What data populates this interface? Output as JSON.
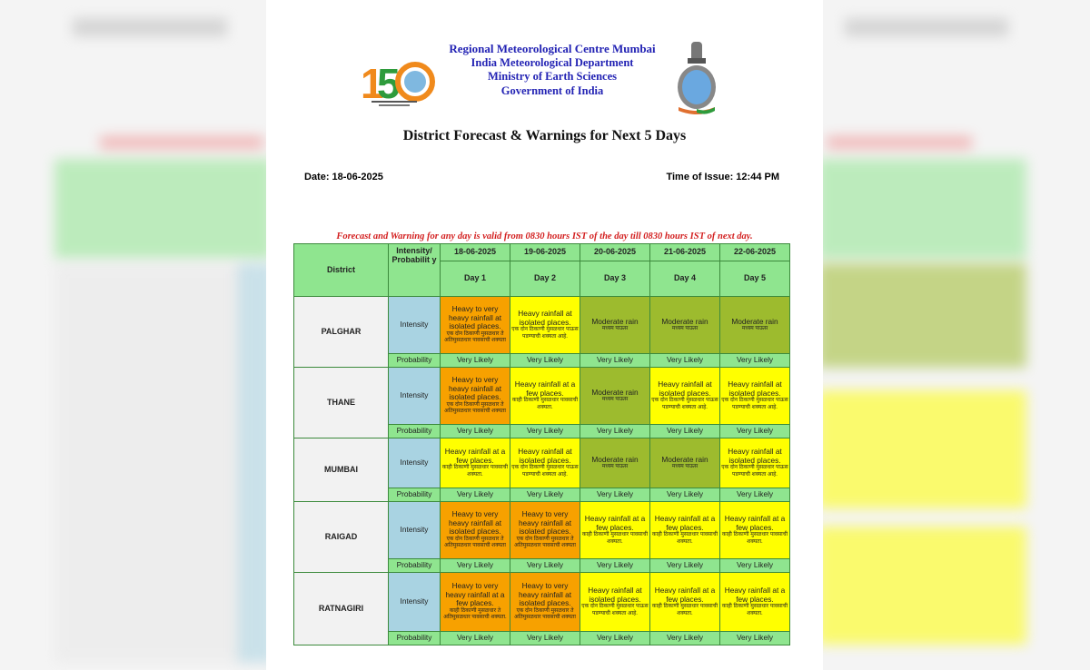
{
  "header": {
    "org_lines": [
      "Regional Meteorological Centre Mumbai",
      "India Meteorological Department",
      "Ministry of Earth Sciences",
      "Government of India"
    ],
    "title": "District Forecast & Warnings for Next 5 Days",
    "date": "Date: 18-06-2025",
    "time": "Time of Issue: 12:44 PM",
    "note": "Forecast and Warning for any day is valid from 0830 hours IST of the day till 0830 hours IST of next day."
  },
  "colors": {
    "orange": "#f7a100",
    "yellow": "#ffff00",
    "olive": "#9dbb2e",
    "header": "#8fe58f",
    "intensity": "#a9d3e2"
  },
  "table": {
    "col_district": "District",
    "col_intensity": "Intensity/ Probabilit y",
    "dates": [
      "18-06-2025",
      "19-06-2025",
      "20-06-2025",
      "21-06-2025",
      "22-06-2025"
    ],
    "days": [
      "Day 1",
      "Day 2",
      "Day 3",
      "Day 4",
      "Day 5"
    ],
    "intensity_label": "Intensity",
    "probability_label": "Probability",
    "legend": {
      "HVHI": {
        "color": "orange",
        "en": "Heavy to very heavy rainfall at isolated places.",
        "mr": "एक दोन ठिकाणी मुसळधार ते अतिमुसळधार पावसाची शक्यता"
      },
      "HVHF": {
        "color": "orange",
        "en": "Heavy to very heavy rainfall at a few places.",
        "mr": "काही ठिकाणी मुसळधार ते अतिमुसळधार पावसाची शक्यता."
      },
      "HI": {
        "color": "yellow",
        "en": "Heavy rainfall at isolated places.",
        "mr": "एक दोन ठिकाणी मुसळधार पाऊस पडण्याची शक्यता आहे."
      },
      "HF": {
        "color": "yellow",
        "en": "Heavy rainfall at a few places.",
        "mr": "काही ठिकाणी मुसळधार पावसाची शक्यता."
      },
      "M": {
        "color": "olive",
        "en": "Moderate rain",
        "mr": "मध्यम पाऊस"
      }
    },
    "rows": [
      {
        "district": "PALGHAR",
        "h": 63,
        "forecast": [
          "HVHI",
          "HI",
          "M",
          "M",
          "M"
        ],
        "probability": [
          "Very Likely",
          "Very Likely",
          "Very Likely",
          "Very Likely",
          "Very Likely"
        ]
      },
      {
        "district": "THANE",
        "h": 63,
        "forecast": [
          "HVHI",
          "HF",
          "M",
          "HI",
          "HI"
        ],
        "probability": [
          "Very Likely",
          "Very Likely",
          "Very Likely",
          "Very Likely",
          "Very Likely"
        ]
      },
      {
        "district": "MUMBAI",
        "h": 55,
        "forecast": [
          "HF",
          "HI",
          "M",
          "M",
          "HI"
        ],
        "probability": [
          "Very Likely",
          "Very Likely",
          "Very Likely",
          "Very Likely",
          "Very Likely"
        ]
      },
      {
        "district": "RAIGAD",
        "h": 63,
        "forecast": [
          "HVHI",
          "HVHI",
          "HF",
          "HF",
          "HF"
        ],
        "probability": [
          "Very Likely",
          "Very Likely",
          "Very Likely",
          "Very Likely",
          "Very Likely"
        ]
      },
      {
        "district": "RATNAGIRI",
        "h": 65,
        "forecast": [
          "HVHF",
          "HVHI",
          "HI",
          "HF",
          "HF"
        ],
        "probability": [
          "Very Likely",
          "Very Likely",
          "Very Likely",
          "Very Likely",
          "Very Likely"
        ]
      }
    ]
  }
}
